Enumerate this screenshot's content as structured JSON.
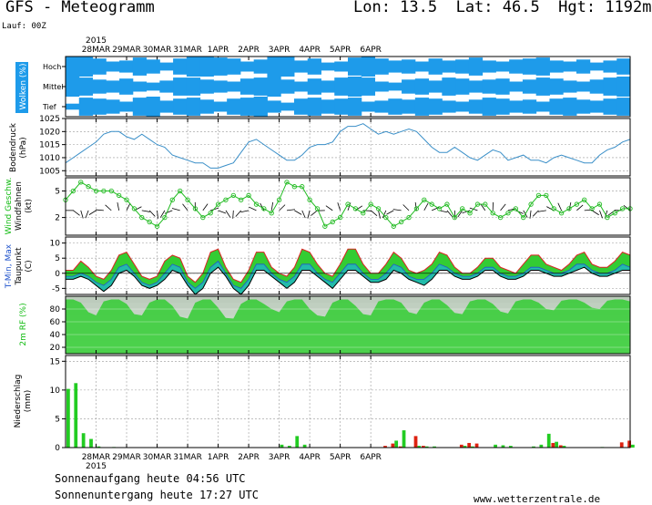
{
  "header": {
    "title": "GFS - Meteogramm",
    "location": "Lon: 13.5  Lat: 46.5  Hgt: 1192m",
    "run": "Lauf: 00Z"
  },
  "footer": {
    "sunrise": "Sonnenaufgang heute 04:56 UTC",
    "sunset": "Sonnenuntergang heute 17:27 UTC",
    "url": "www.wetterzentrale.de"
  },
  "colors": {
    "cloud": "#1e9bea",
    "pressure_line": "#3a8fc8",
    "wind_marker": "#22bb22",
    "temp_max": "#dd2222",
    "temp_fill": "#33cc33",
    "dewpoint_fill": "#22bbaa",
    "rh_fill": "#33cc33",
    "precip_green": "#22cc22",
    "precip_red": "#dd2211",
    "label_green": "#11bb11",
    "label_white": "#ffffff"
  },
  "chart_data": [
    {
      "type": "heatmap",
      "panel": "clouds",
      "ylabel": "Wolken (%)",
      "levels": [
        "Hoch",
        "Mittel",
        "Tief"
      ],
      "year_label": "2015",
      "x_ticks": [
        "28MAR",
        "29MAR",
        "30MAR",
        "31MAR",
        "1APR",
        "2APR",
        "3APR",
        "4APR",
        "5APR",
        "6APR"
      ],
      "coverage": {
        "Hoch": [
          1,
          1,
          0.8,
          0.5,
          0.6,
          0.9,
          0.7,
          0.4,
          0.8,
          1,
          1,
          0.9,
          0.8,
          0.5,
          0.7,
          1,
          1,
          0.6,
          0.8,
          0.4,
          0.5,
          0.9,
          1,
          0.8,
          0.6,
          0.7,
          0.5,
          0.8,
          0.6,
          0.7,
          0.9,
          0.6,
          0.5,
          0.7,
          0.8,
          0.9,
          0.6,
          0.5,
          0.7,
          0.4,
          0.6,
          0.8
        ],
        "Mittel": [
          1,
          0.9,
          0.7,
          0.6,
          0.8,
          0.5,
          0.4,
          0.6,
          0.9,
          0.9,
          0.7,
          0.6,
          0.5,
          0.8,
          0.9,
          1,
          0.7,
          0.5,
          0.8,
          0.6,
          0.9,
          1,
          0.9,
          0.5,
          0.4,
          0.7,
          0.8,
          0.6,
          0.9,
          0.8,
          0.6,
          0.7,
          0.8,
          0.5,
          0.7,
          0.9,
          0.8,
          0.6,
          0.5,
          0.7,
          0.9,
          1
        ],
        "Tief": [
          0.3,
          0.9,
          0.8,
          0.7,
          0.5,
          0.9,
          1,
          0.6,
          0.8,
          0.9,
          0.7,
          0.5,
          0.8,
          0.9,
          1,
          0.6,
          0.4,
          0.8,
          0.9,
          0.7,
          0.8,
          0.9,
          0.5,
          0.6,
          0.8,
          0.7,
          0.9,
          0.8,
          0.6,
          0.5,
          0.7,
          0.9,
          0.8,
          0.6,
          0.7,
          0.5,
          0.8,
          0.9,
          0.7,
          0.6,
          0.8,
          0.9
        ]
      }
    },
    {
      "type": "line",
      "panel": "pressure",
      "ylabel": "Bodendruck",
      "unit": "(hPa)",
      "y_ticks": [
        "1025",
        "1020",
        "1015",
        "1010",
        "1005"
      ],
      "ylim": [
        1003,
        1025
      ],
      "x_start": "27MAR 00Z",
      "step_hours": 6,
      "values": [
        1008,
        1010,
        1012,
        1014,
        1016,
        1019,
        1020,
        1020,
        1018,
        1017,
        1019,
        1017,
        1015,
        1014,
        1011,
        1010,
        1009,
        1008,
        1008,
        1006,
        1006,
        1007,
        1008,
        1012,
        1016,
        1017,
        1015,
        1013,
        1011,
        1009,
        1009,
        1011,
        1014,
        1015,
        1015,
        1016,
        1020,
        1022,
        1022,
        1023,
        1021,
        1019,
        1020,
        1019,
        1020,
        1021,
        1020,
        1017,
        1014,
        1012,
        1012,
        1014,
        1012,
        1010,
        1009,
        1011,
        1013,
        1012,
        1009,
        1010,
        1011,
        1009,
        1009,
        1008,
        1010,
        1011,
        1010,
        1009,
        1008,
        1008,
        1011,
        1013,
        1014,
        1016,
        1017
      ],
      "note": "values at 6-hour steps"
    },
    {
      "type": "line",
      "panel": "wind",
      "ylabel": "Wind Geschw. Windfahnen",
      "unit": "(kt)",
      "y_ticks": [
        "5",
        "2"
      ],
      "ylim": [
        0,
        6.5
      ],
      "x_start": "27MAR 00Z",
      "step_hours": 6,
      "values": [
        4,
        5,
        6,
        5.5,
        5,
        5,
        5,
        4.5,
        4,
        3,
        2,
        1.5,
        1,
        2,
        4,
        5,
        4,
        3,
        2,
        2.5,
        3.5,
        4,
        4.5,
        4,
        4.5,
        3.5,
        3,
        2.5,
        4,
        6,
        5.5,
        5.5,
        4,
        3,
        1,
        1.5,
        2,
        3.5,
        3,
        2.5,
        3.5,
        3,
        2,
        1,
        1.5,
        2,
        3,
        4,
        3.5,
        3,
        3.5,
        2,
        3,
        2.5,
        3.5,
        3.5,
        2.5,
        2,
        2.5,
        3,
        2,
        3.5,
        4.5,
        4.5,
        3,
        2.5,
        3,
        3.5,
        4,
        3,
        3.5,
        2,
        2.5,
        3,
        3
      ]
    },
    {
      "type": "area",
      "panel": "temperature",
      "ylabel": "T-Min, Max Taupunkt",
      "unit": "(C)",
      "y_ticks": [
        "10",
        "5",
        "0",
        "-5"
      ],
      "ylim": [
        -7,
        12
      ],
      "x_start": "27MAR 00Z",
      "step_hours": 6,
      "t_max": [
        1,
        1,
        4,
        2,
        -1,
        -2,
        1,
        6,
        7,
        3,
        -1,
        -2,
        -1,
        4,
        6,
        5,
        -1,
        -3,
        0,
        7,
        8,
        2,
        -2,
        -3,
        1,
        7,
        7,
        2,
        0,
        -1,
        2,
        8,
        7,
        3,
        0,
        -1,
        3,
        8,
        8,
        3,
        0,
        0,
        3,
        7,
        5,
        1,
        0,
        1,
        3,
        7,
        6,
        2,
        0,
        0,
        2,
        5,
        5,
        2,
        1,
        0,
        3,
        6,
        6,
        3,
        2,
        1,
        3,
        6,
        7,
        3,
        2,
        2,
        4,
        7,
        6
      ],
      "t_min": [
        -1,
        -1,
        0,
        -1,
        -3,
        -4,
        -2,
        2,
        3,
        0,
        -3,
        -4,
        -3,
        0,
        3,
        2,
        -3,
        -5,
        -3,
        2,
        4,
        0,
        -4,
        -5,
        -2,
        3,
        3,
        0,
        -2,
        -3,
        -1,
        3,
        3,
        0,
        -2,
        -3,
        0,
        3,
        3,
        0,
        -2,
        -2,
        0,
        3,
        2,
        -1,
        -2,
        -2,
        0,
        3,
        2,
        0,
        -1,
        -1,
        0,
        2,
        2,
        0,
        -1,
        -1,
        0,
        2,
        2,
        1,
        0,
        0,
        1,
        3,
        3,
        1,
        0,
        0,
        1,
        3,
        2
      ],
      "dewpoint": [
        -2,
        -2,
        -1,
        -2,
        -4,
        -6,
        -4,
        0,
        1,
        -1,
        -4,
        -5,
        -4,
        -2,
        1,
        0,
        -4,
        -7,
        -5,
        0,
        2,
        -1,
        -5,
        -7,
        -4,
        1,
        1,
        -1,
        -3,
        -5,
        -3,
        1,
        1,
        -1,
        -3,
        -5,
        -2,
        1,
        1,
        -1,
        -3,
        -3,
        -2,
        1,
        0,
        -2,
        -3,
        -4,
        -2,
        1,
        1,
        -1,
        -2,
        -2,
        -1,
        1,
        1,
        -1,
        -2,
        -2,
        -1,
        1,
        1,
        0,
        -1,
        -1,
        0,
        1,
        2,
        0,
        -1,
        -1,
        0,
        1,
        1
      ]
    },
    {
      "type": "area",
      "panel": "humidity",
      "ylabel": "2m RF (%)",
      "y_ticks": [
        "80",
        "60",
        "40",
        "20"
      ],
      "ylim": [
        10,
        100
      ],
      "x_start": "27MAR 00Z",
      "step_hours": 6,
      "values": [
        95,
        95,
        90,
        75,
        70,
        92,
        95,
        95,
        88,
        72,
        70,
        90,
        95,
        95,
        85,
        68,
        65,
        90,
        95,
        95,
        82,
        66,
        65,
        88,
        95,
        95,
        88,
        80,
        75,
        92,
        95,
        95,
        80,
        70,
        68,
        90,
        95,
        95,
        85,
        72,
        70,
        92,
        95,
        95,
        90,
        75,
        72,
        90,
        95,
        95,
        86,
        74,
        72,
        92,
        95,
        95,
        88,
        76,
        73,
        92,
        95,
        95,
        90,
        80,
        78,
        93,
        95,
        95,
        90,
        82,
        80,
        93,
        95,
        95,
        92
      ]
    },
    {
      "type": "bar",
      "panel": "precipitation",
      "ylabel": "Niederschlag",
      "unit": "(mm)",
      "y_ticks": [
        "15",
        "10",
        "5",
        "0"
      ],
      "ylim": [
        0,
        16
      ],
      "x_start": "27MAR 00Z",
      "step_hours": 6,
      "x_ticks": [
        "28MAR",
        "29MAR",
        "30MAR",
        "31MAR",
        "1APR",
        "2APR",
        "3APR",
        "4APR",
        "5APR",
        "6APR"
      ],
      "year_label": "2015",
      "green": [
        10.2,
        11.2,
        2.5,
        1.5,
        0.2,
        0,
        0.1,
        0,
        0,
        0,
        0,
        0,
        0,
        0,
        0,
        0,
        0,
        0,
        0,
        0,
        0,
        0,
        0,
        0,
        0,
        0,
        0,
        0,
        0.5,
        0.3,
        2,
        0.5,
        0,
        0,
        0,
        0,
        0,
        0,
        0,
        0,
        0,
        0,
        0,
        1.2,
        3,
        0,
        0.3,
        0.2,
        0.2,
        0,
        0,
        0,
        0.3,
        0.2,
        0,
        0,
        0.5,
        0.4,
        0.3,
        0,
        0,
        0.2,
        0.5,
        2.4,
        1,
        0.3,
        0,
        0,
        0,
        0,
        0.1,
        0,
        0,
        0,
        0.5
      ],
      "red": [
        0,
        0,
        0,
        0,
        0,
        0,
        0,
        0,
        0,
        0,
        0,
        0,
        0,
        0,
        0,
        0,
        0,
        0,
        0,
        0,
        0,
        0,
        0,
        0,
        0,
        0,
        0,
        0,
        0,
        0,
        0,
        0,
        0,
        0,
        0,
        0,
        0,
        0,
        0,
        0,
        0,
        0,
        0.3,
        0.7,
        0.2,
        0,
        2,
        0.3,
        0,
        0,
        0,
        0,
        0.5,
        0.8,
        0.7,
        0,
        0,
        0,
        0,
        0,
        0,
        0,
        0,
        0,
        0.8,
        0.4,
        0,
        0,
        0,
        0,
        0,
        0,
        0,
        0.9,
        1.2
      ]
    }
  ]
}
